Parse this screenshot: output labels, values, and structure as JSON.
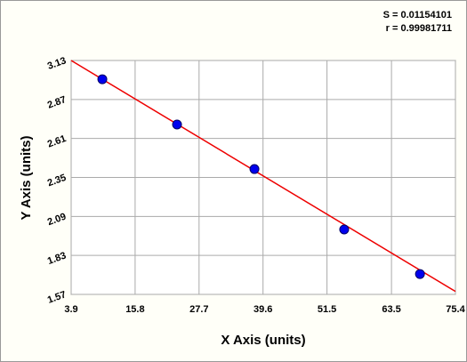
{
  "chart_data": {
    "type": "scatter",
    "annotations": [
      "S = 0.01154101",
      "r = 0.99981711"
    ],
    "x_label": "X Axis (units)",
    "y_label": "Y Axis (units)",
    "x": [
      9.7,
      23.6,
      38.0,
      54.7,
      68.8
    ],
    "values": [
      3.005,
      2.703,
      2.406,
      2.003,
      1.706
    ],
    "color": "#0000ee",
    "fit": {
      "x": [
        3.9,
        75.4
      ],
      "y": [
        3.13,
        1.59
      ],
      "color": "#ee0000"
    },
    "xlim": [
      3.9,
      75.4
    ],
    "xticks": [
      3.9,
      15.8,
      27.7,
      39.6,
      51.5,
      63.5,
      75.4
    ],
    "ylim": [
      1.57,
      3.13
    ],
    "yticks": [
      1.57,
      1.83,
      2.09,
      2.35,
      2.61,
      2.87,
      3.13
    ],
    "grid": true
  }
}
